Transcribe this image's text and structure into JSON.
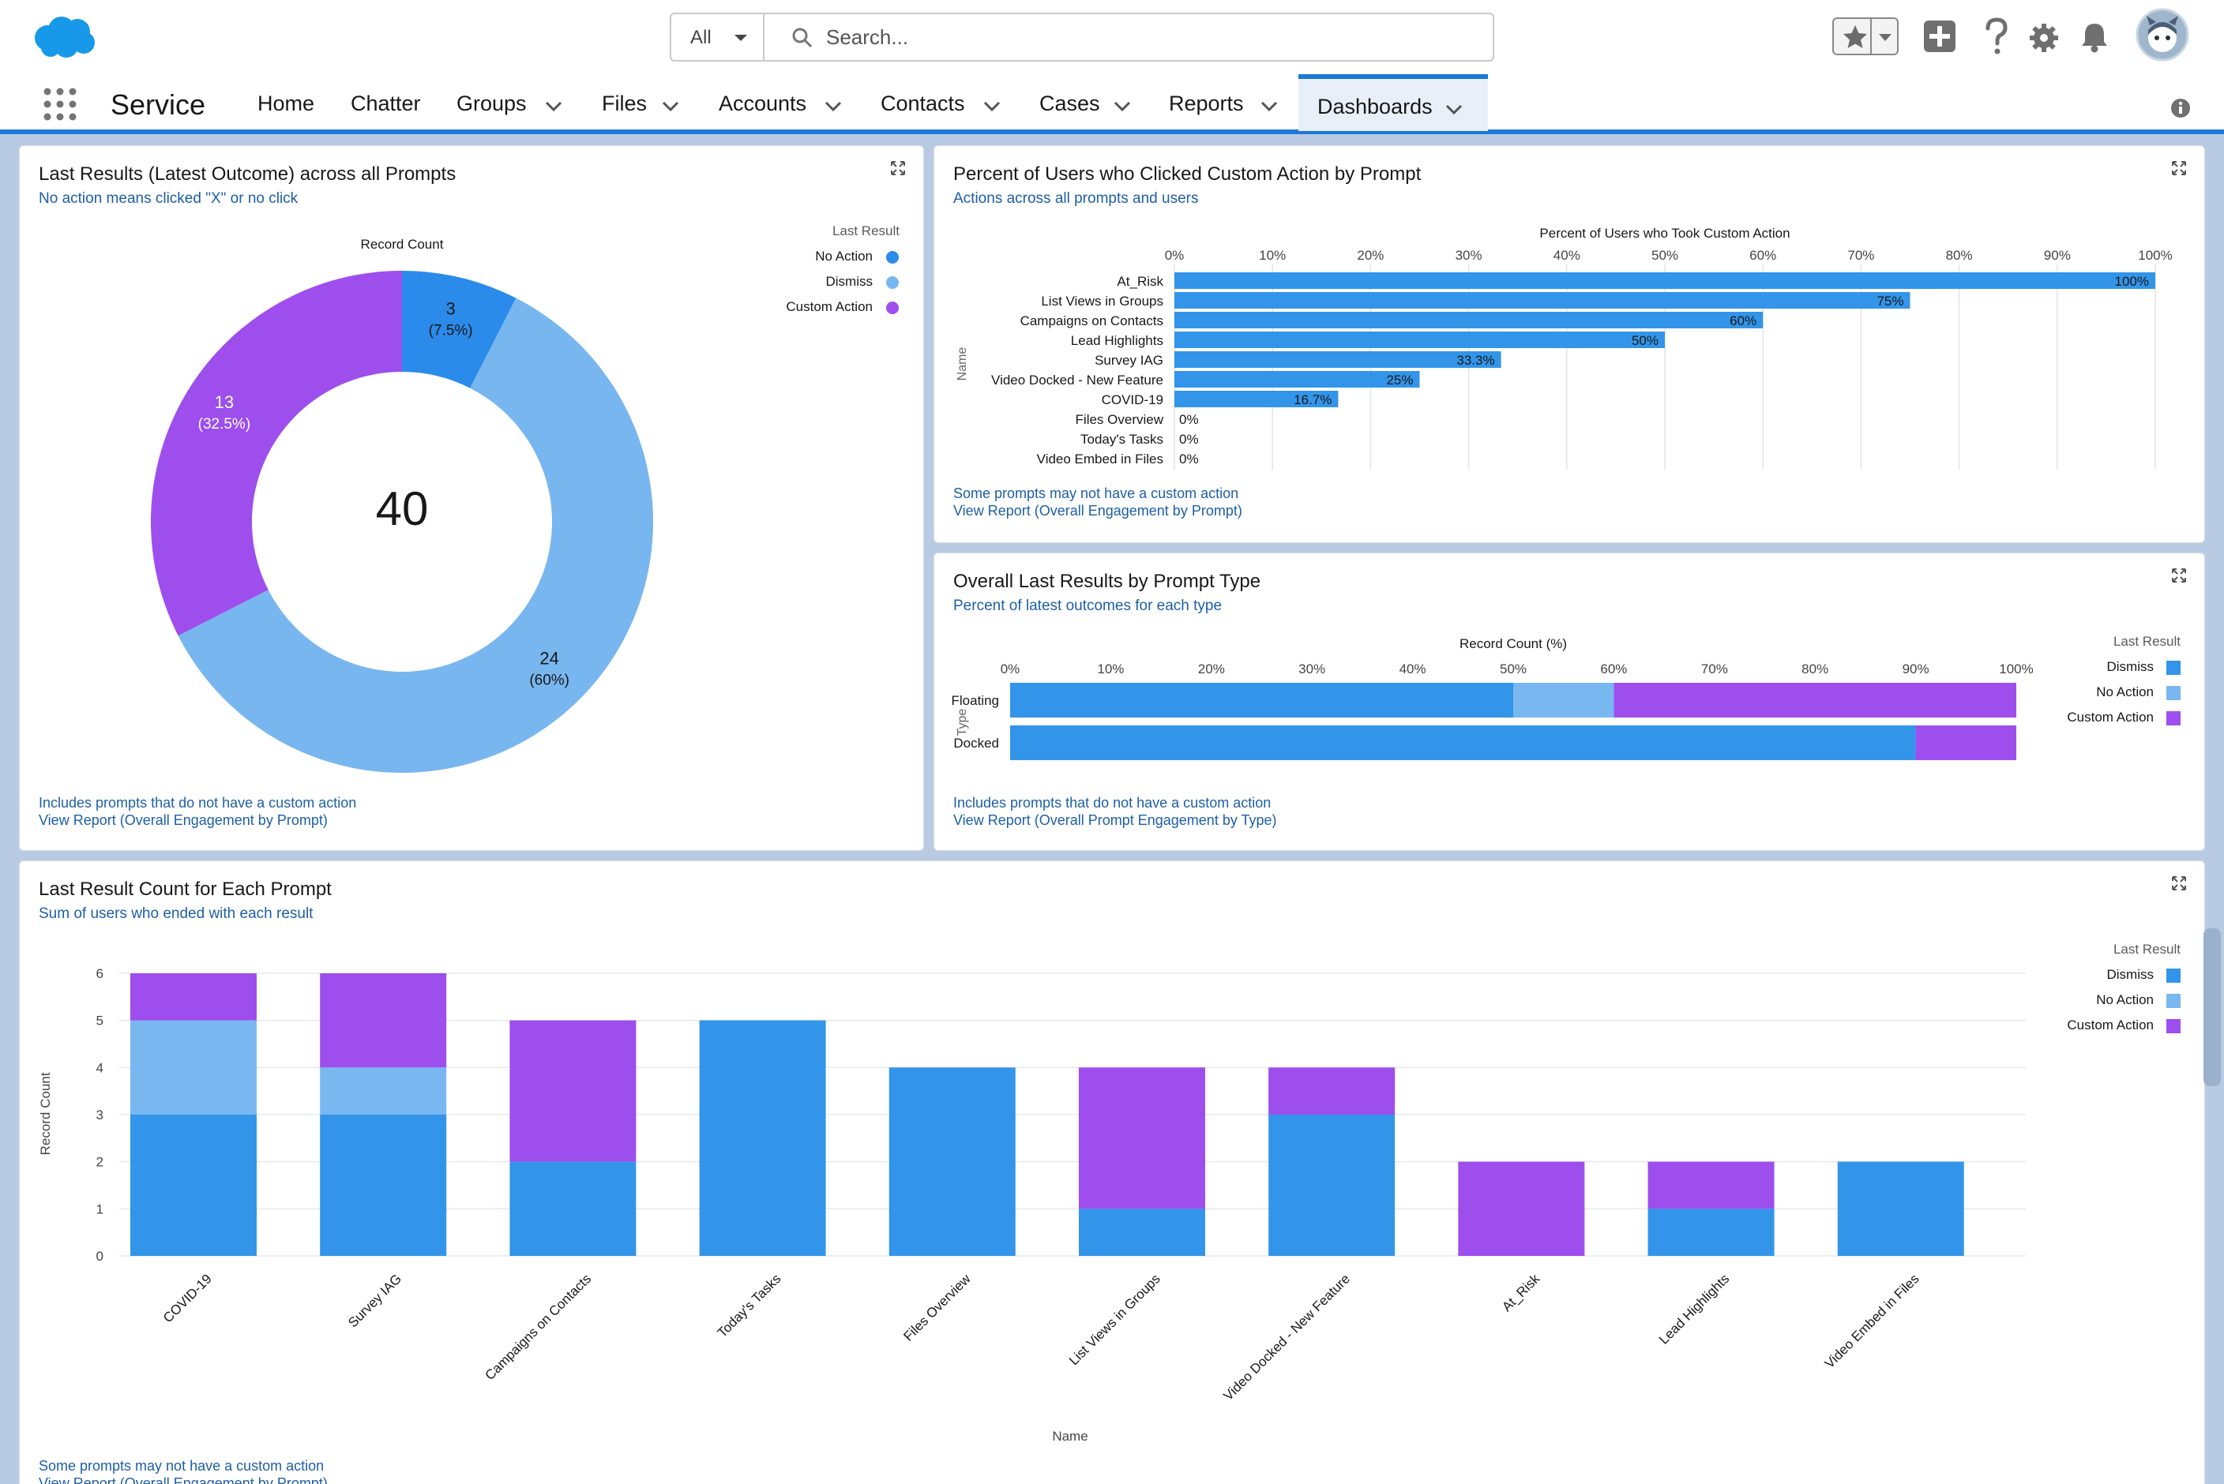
{
  "header": {
    "search_scope": "All",
    "search_placeholder": "Search...",
    "icons": [
      "salesforce-cloud-logo",
      "chevron-down-icon",
      "search-icon",
      "star-icon",
      "plus-icon",
      "question-icon",
      "gear-icon",
      "bell-icon",
      "avatar-icon"
    ]
  },
  "nav": {
    "app_name": "Service",
    "items": [
      {
        "label": "Home",
        "caret": false
      },
      {
        "label": "Chatter",
        "caret": false
      },
      {
        "label": "Groups",
        "caret": true
      },
      {
        "label": "Files",
        "caret": true
      },
      {
        "label": "Accounts",
        "caret": true
      },
      {
        "label": "Contacts",
        "caret": true
      },
      {
        "label": "Cases",
        "caret": true
      },
      {
        "label": "Reports",
        "caret": true
      },
      {
        "label": "Dashboards",
        "caret": true,
        "active": true
      }
    ]
  },
  "colors": {
    "no_action_donut": "#2b8bea",
    "dismiss_donut": "#78b6f0",
    "custom_action": "#9d4eed",
    "dismiss_bar": "#3295e9",
    "no_action_bar": "#79b7f1",
    "link": "#1d5fa6",
    "nav_accent": "#1b78d8"
  },
  "card1": {
    "title": "Last Results (Latest Outcome) across all Prompts",
    "subtitle": "No action means clicked \"X\" or no click",
    "footer_note": "Includes prompts that do not have a custom action",
    "footer_link": "View Report (Overall Engagement by Prompt)",
    "chart_data": {
      "type": "pie",
      "title": "Record Count",
      "center_value": "40",
      "legend_title": "Last Result",
      "legend_placement": "top-right",
      "slices": [
        {
          "name": "No Action",
          "value": 3,
          "label": "3",
          "pct": "(7.5%)"
        },
        {
          "name": "Dismiss",
          "value": 24,
          "label": "24",
          "pct": "(60%)"
        },
        {
          "name": "Custom Action",
          "value": 13,
          "label": "13",
          "pct": "(32.5%)"
        }
      ]
    }
  },
  "card2": {
    "title": "Percent of Users who Clicked Custom Action by Prompt",
    "subtitle": "Actions across all prompts and users",
    "footer_note": "Some prompts may not have a custom action",
    "footer_link": "View Report (Overall Engagement by Prompt)",
    "chart_data": {
      "type": "bar",
      "orientation": "horizontal",
      "xlabel": "Percent of Users who Took Custom Action",
      "ylabel": "Name",
      "xlim": [
        0,
        100
      ],
      "ticks": [
        "0%",
        "10%",
        "20%",
        "30%",
        "40%",
        "50%",
        "60%",
        "70%",
        "80%",
        "90%",
        "100%"
      ],
      "grid": true,
      "categories": [
        "At_Risk",
        "List Views in Groups",
        "Campaigns on Contacts",
        "Lead Highlights",
        "Survey IAG",
        "Video Docked - New Feature",
        "COVID-19",
        "Files Overview",
        "Today's Tasks",
        "Video Embed in Files"
      ],
      "values": [
        100,
        75,
        60,
        50,
        33.3,
        25,
        16.7,
        0,
        0,
        0
      ],
      "data_labels": [
        "100%",
        "75%",
        "60%",
        "50%",
        "33.3%",
        "25%",
        "16.7%",
        "0%",
        "0%",
        "0%"
      ]
    }
  },
  "card3": {
    "title": "Overall Last Results by Prompt Type",
    "subtitle": "Percent of latest outcomes for each type",
    "footer_note": "Includes prompts that do not have a custom action",
    "footer_link": "View Report (Overall Prompt Engagement by Type)",
    "chart_data": {
      "type": "bar",
      "orientation": "horizontal",
      "stacked": true,
      "xlabel": "Record Count (%)",
      "ylabel": "Type",
      "xlim": [
        0,
        100
      ],
      "ticks": [
        "0%",
        "10%",
        "20%",
        "30%",
        "40%",
        "50%",
        "60%",
        "70%",
        "80%",
        "90%",
        "100%"
      ],
      "legend_title": "Last Result",
      "legend_placement": "right",
      "categories": [
        "Floating",
        "Docked"
      ],
      "series": [
        {
          "name": "Dismiss",
          "values": [
            50,
            90
          ]
        },
        {
          "name": "No Action",
          "values": [
            10,
            0
          ]
        },
        {
          "name": "Custom Action",
          "values": [
            40,
            10
          ]
        }
      ]
    }
  },
  "card4": {
    "title": "Last Result Count for Each Prompt",
    "subtitle": "Sum of users who ended with each result",
    "footer_note": "Some prompts may not have a custom action",
    "footer_link": "View Report (Overall Engagement by Prompt)",
    "chart_data": {
      "type": "bar",
      "stacked": true,
      "xlabel": "Name",
      "ylabel": "Record Count",
      "ylim": [
        0,
        6
      ],
      "yticks": [
        "0",
        "1",
        "2",
        "3",
        "4",
        "5",
        "6"
      ],
      "grid": true,
      "legend_title": "Last Result",
      "legend_placement": "right",
      "categories": [
        "COVID-19",
        "Survey IAG",
        "Campaigns on Contacts",
        "Today's Tasks",
        "Files Overview",
        "List Views in Groups",
        "Video Docked - New Feature",
        "At_Risk",
        "Lead Highlights",
        "Video Embed in Files"
      ],
      "series": [
        {
          "name": "Dismiss",
          "values": [
            3,
            3,
            2,
            5,
            4,
            1,
            3,
            0,
            1,
            2
          ]
        },
        {
          "name": "No Action",
          "values": [
            2,
            1,
            0,
            0,
            0,
            0,
            0,
            0,
            0,
            0
          ]
        },
        {
          "name": "Custom Action",
          "values": [
            1,
            2,
            3,
            0,
            0,
            3,
            1,
            2,
            1,
            0
          ]
        }
      ]
    }
  }
}
